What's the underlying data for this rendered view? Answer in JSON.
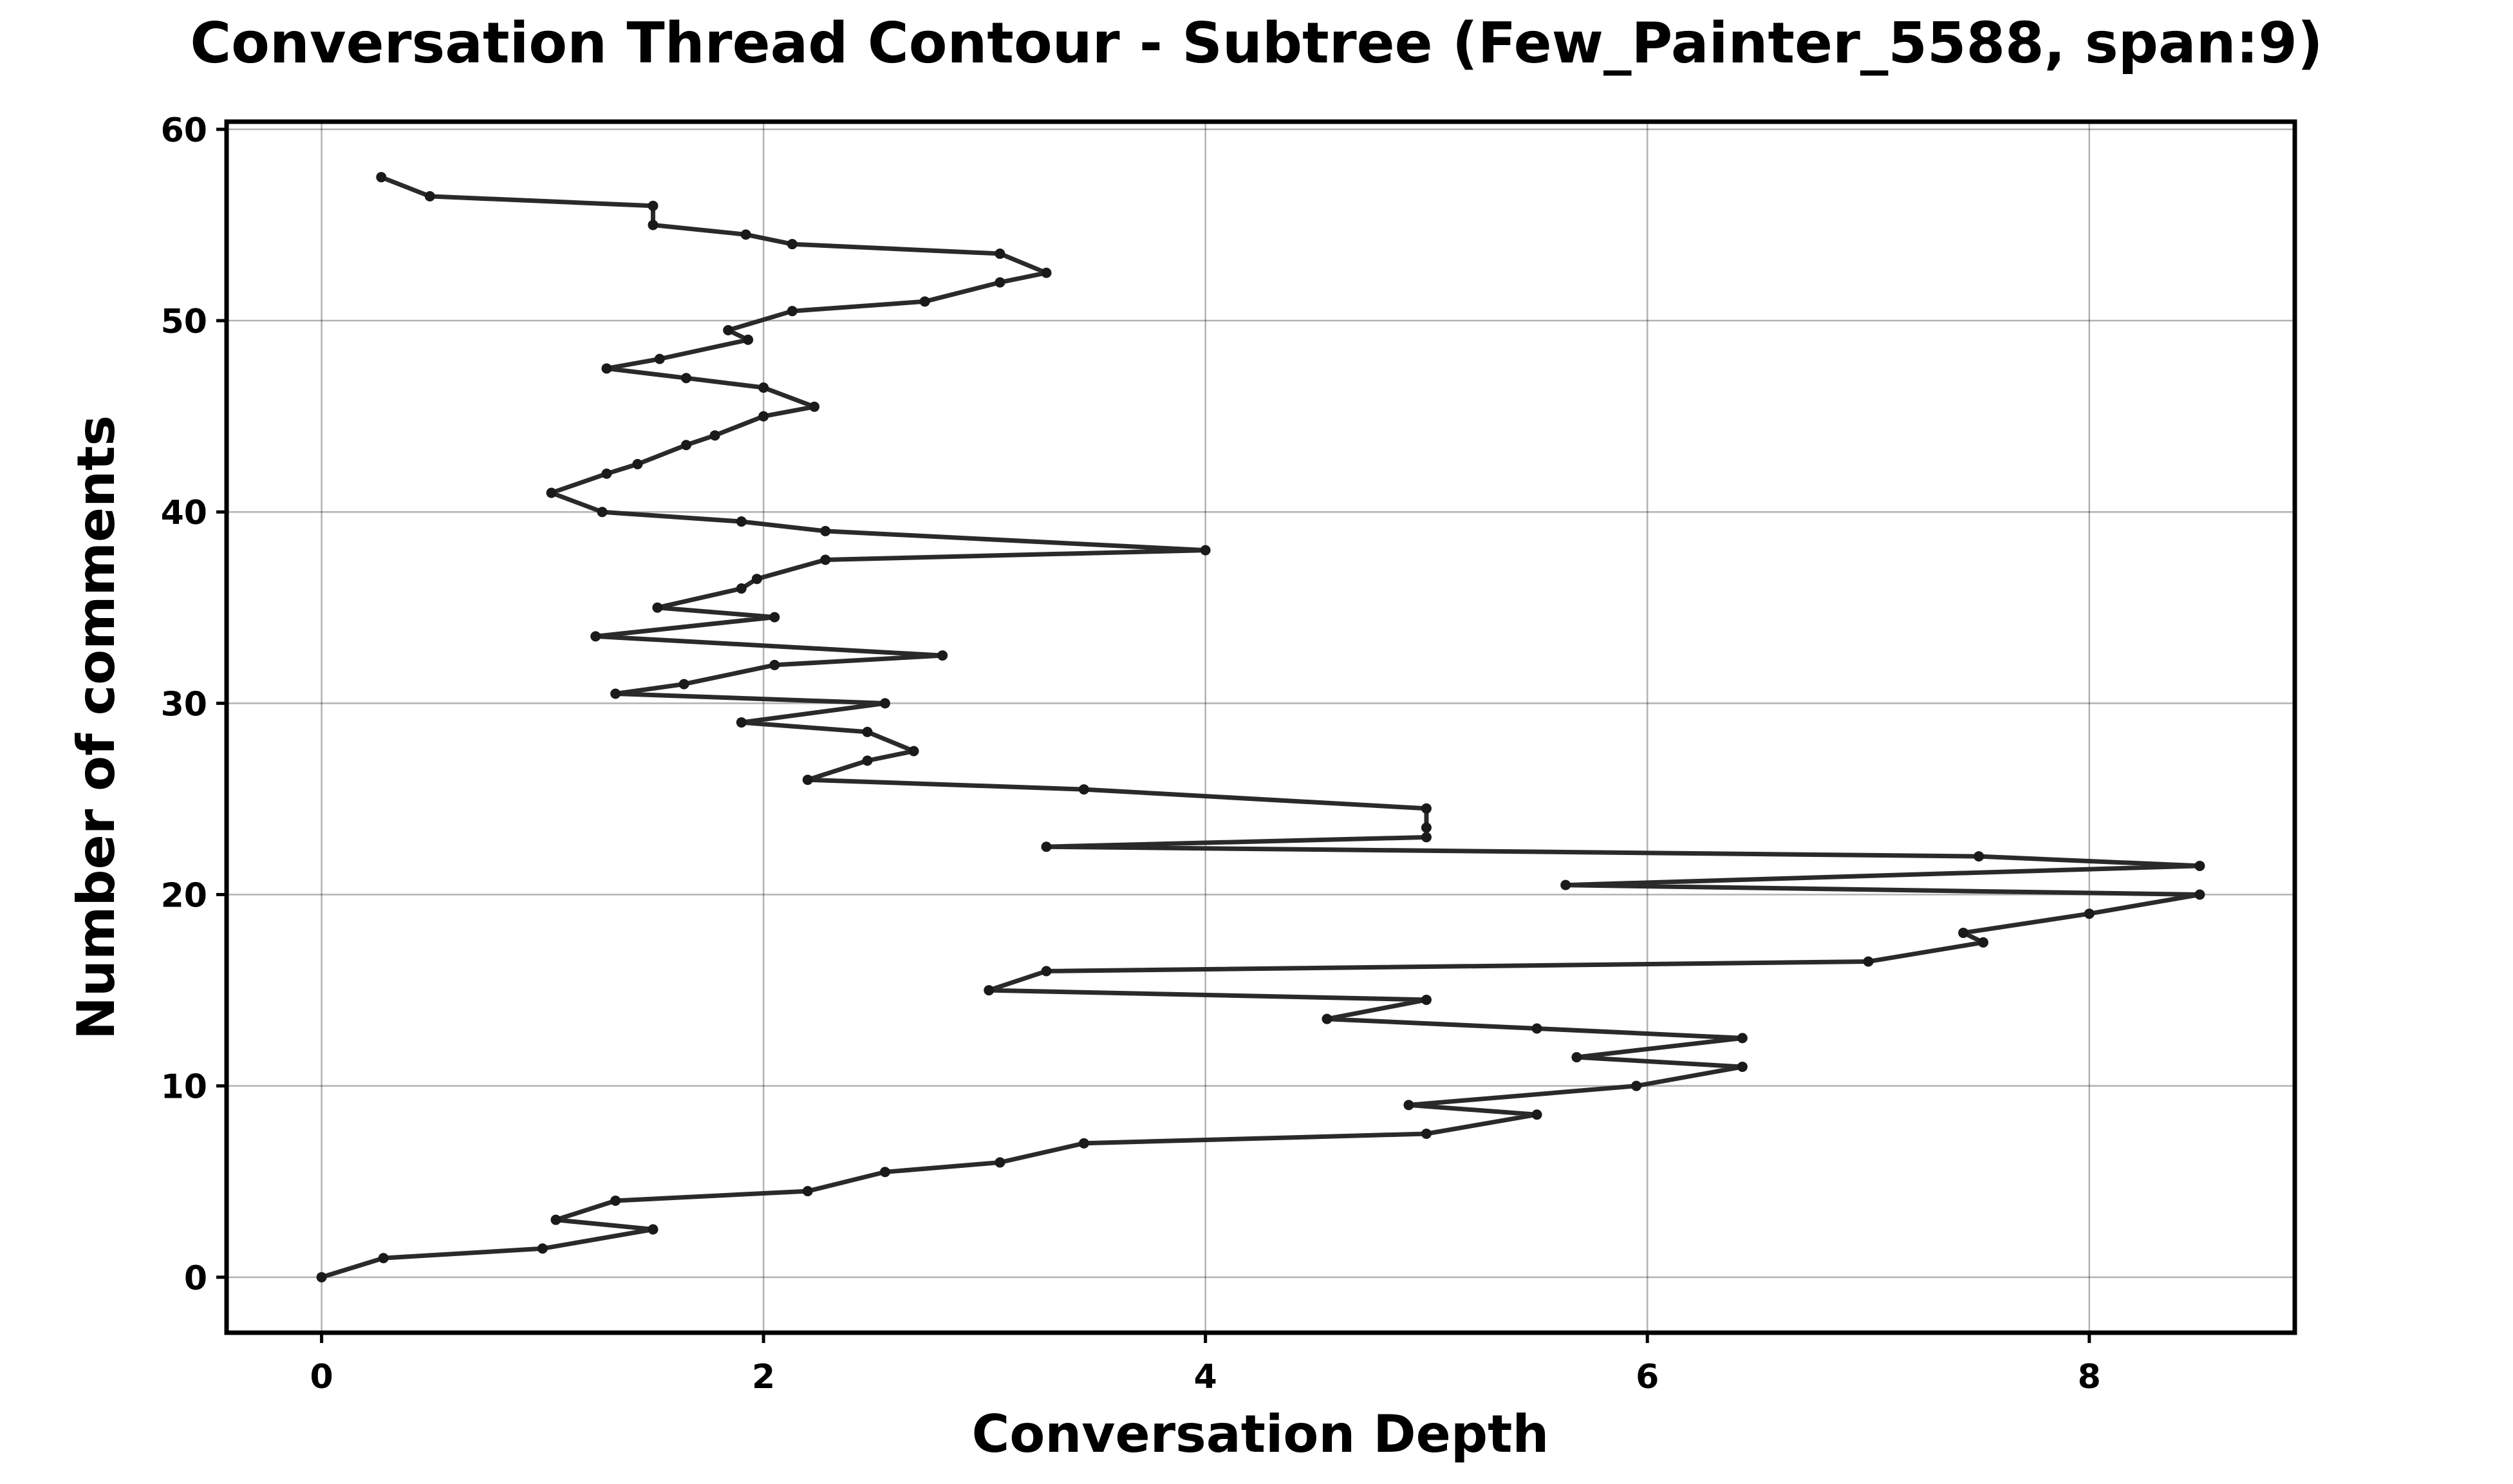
{
  "chart_data": {
    "type": "line",
    "title": "Conversation Thread Contour  - Subtree (Few_Painter_5588, span:9)",
    "xlabel": "Conversation Depth",
    "ylabel": "Number of comments",
    "xlim": [
      -0.43,
      8.93
    ],
    "ylim": [
      -2.9,
      60.4
    ],
    "xticks": [
      0,
      2,
      4,
      6,
      8
    ],
    "yticks": [
      0,
      10,
      20,
      30,
      40,
      50,
      60
    ],
    "xtick_labels": [
      "0",
      "2",
      "4",
      "6",
      "8"
    ],
    "ytick_labels": [
      "0",
      "10",
      "20",
      "30",
      "40",
      "50",
      "60"
    ],
    "grid": true,
    "series_color": "#2a2a2a",
    "series": [
      {
        "points": [
          [
            0.0,
            0.0
          ],
          [
            0.28,
            1.0
          ],
          [
            1.0,
            1.5
          ],
          [
            1.5,
            2.5
          ],
          [
            1.06,
            3.0
          ],
          [
            1.33,
            4.0
          ],
          [
            2.2,
            4.5
          ],
          [
            2.55,
            5.5
          ],
          [
            3.07,
            6.0
          ],
          [
            3.45,
            7.0
          ],
          [
            5.0,
            7.5
          ],
          [
            5.5,
            8.5
          ],
          [
            4.92,
            9.0
          ],
          [
            5.95,
            10.0
          ],
          [
            6.43,
            11.0
          ],
          [
            5.68,
            11.5
          ],
          [
            6.43,
            12.5
          ],
          [
            5.5,
            13.0
          ],
          [
            4.55,
            13.5
          ],
          [
            5.0,
            14.5
          ],
          [
            3.02,
            15.0
          ],
          [
            3.28,
            16.0
          ],
          [
            7.0,
            16.5
          ],
          [
            7.52,
            17.5
          ],
          [
            7.43,
            18.0
          ],
          [
            8.0,
            19.0
          ],
          [
            8.5,
            20.0
          ],
          [
            5.63,
            20.5
          ],
          [
            8.5,
            21.5
          ],
          [
            7.5,
            22.0
          ],
          [
            3.28,
            22.5
          ],
          [
            5.0,
            23.0
          ],
          [
            5.0,
            23.5
          ],
          [
            5.0,
            24.5
          ],
          [
            3.45,
            25.5
          ],
          [
            2.2,
            26.0
          ],
          [
            2.47,
            27.0
          ],
          [
            2.68,
            27.5
          ],
          [
            2.47,
            28.5
          ],
          [
            1.9,
            29.0
          ],
          [
            2.55,
            30.0
          ],
          [
            1.33,
            30.5
          ],
          [
            1.64,
            31.0
          ],
          [
            2.05,
            32.0
          ],
          [
            2.81,
            32.5
          ],
          [
            1.24,
            33.5
          ],
          [
            2.05,
            34.5
          ],
          [
            1.52,
            35.0
          ],
          [
            1.9,
            36.0
          ],
          [
            1.97,
            36.5
          ],
          [
            2.28,
            37.5
          ],
          [
            4.0,
            38.0
          ],
          [
            2.28,
            39.0
          ],
          [
            1.9,
            39.5
          ],
          [
            1.27,
            40.0
          ],
          [
            1.04,
            41.0
          ],
          [
            1.29,
            42.0
          ],
          [
            1.43,
            42.5
          ],
          [
            1.65,
            43.5
          ],
          [
            1.78,
            44.0
          ],
          [
            2.0,
            45.0
          ],
          [
            2.23,
            45.5
          ],
          [
            2.0,
            46.5
          ],
          [
            1.65,
            47.0
          ],
          [
            1.29,
            47.5
          ],
          [
            1.53,
            48.0
          ],
          [
            1.93,
            49.0
          ],
          [
            1.84,
            49.5
          ],
          [
            2.13,
            50.5
          ],
          [
            2.73,
            51.0
          ],
          [
            3.07,
            52.0
          ],
          [
            3.28,
            52.5
          ],
          [
            3.07,
            53.5
          ],
          [
            2.13,
            54.0
          ],
          [
            1.92,
            54.5
          ],
          [
            1.5,
            55.0
          ],
          [
            1.5,
            56.0
          ],
          [
            0.49,
            56.5
          ],
          [
            0.27,
            57.5
          ]
        ]
      }
    ]
  }
}
